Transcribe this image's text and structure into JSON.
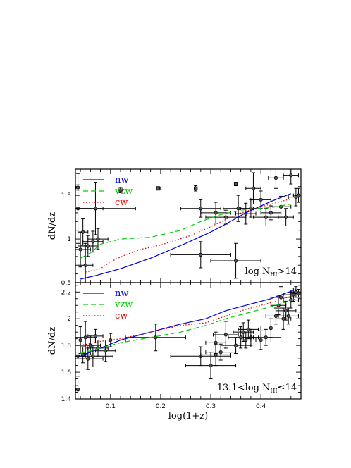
{
  "chart_data": [
    {
      "type": "line",
      "panel": "top",
      "ylabel": "dN/dz",
      "xlabel": "",
      "xlim": [
        0.03,
        0.48
      ],
      "ylim": [
        0.5,
        1.8
      ],
      "yticks": [
        "0.5",
        "1",
        "1.5"
      ],
      "yticks_values": [
        0.5,
        1.0,
        1.5
      ],
      "annotation": {
        "main": "log N",
        "sub": "HI",
        "cond": ">14"
      },
      "legend_position": "top-left",
      "series": [
        {
          "name": "nw",
          "color": "#0000dd",
          "style": "solid",
          "x": [
            0.04,
            0.07,
            0.12,
            0.18,
            0.25,
            0.3,
            0.33,
            0.37,
            0.42,
            0.46
          ],
          "y": [
            0.54,
            0.58,
            0.66,
            0.78,
            0.95,
            1.08,
            1.17,
            1.3,
            1.43,
            1.52
          ]
        },
        {
          "name": "vzw",
          "color": "#00cc00",
          "style": "dashed",
          "x": [
            0.04,
            0.06,
            0.08,
            0.12,
            0.18,
            0.24,
            0.28,
            0.32,
            0.37,
            0.42,
            0.46
          ],
          "y": [
            0.78,
            0.84,
            0.94,
            1.0,
            1.02,
            1.1,
            1.2,
            1.28,
            1.34,
            1.36,
            1.4
          ]
        },
        {
          "name": "cw",
          "color": "#dd0000",
          "style": "dotted",
          "x": [
            0.05,
            0.08,
            0.1,
            0.13,
            0.16,
            0.2,
            0.26,
            0.3,
            0.35,
            0.4,
            0.46
          ],
          "y": [
            0.62,
            0.66,
            0.74,
            0.82,
            0.88,
            0.93,
            1.04,
            1.14,
            1.28,
            1.37,
            1.46
          ]
        }
      ],
      "points": [
        {
          "x": 0.035,
          "y": 1.59,
          "ex": 0.004,
          "ey": 0.03
        },
        {
          "x": 0.12,
          "y": 1.56,
          "ex": 0.004,
          "ey": 0.03
        },
        {
          "x": 0.195,
          "y": 1.58,
          "ex": 0.004,
          "ey": 0.02
        },
        {
          "x": 0.27,
          "y": 1.58,
          "ex": 0.003,
          "ey": 0.03
        },
        {
          "x": 0.35,
          "y": 1.63,
          "ex": 0.003,
          "ey": 0.02
        },
        {
          "x": 0.035,
          "y": 1.35,
          "ex": 0.05,
          "ey": 0.4
        },
        {
          "x": 0.04,
          "y": 0.88,
          "ex": 0.02,
          "ey": 0.2
        },
        {
          "x": 0.045,
          "y": 1.08,
          "ex": 0.01,
          "ey": 0.15
        },
        {
          "x": 0.05,
          "y": 0.7,
          "ex": 0.015,
          "ey": 0.25
        },
        {
          "x": 0.055,
          "y": 0.92,
          "ex": 0.02,
          "ey": 0.12
        },
        {
          "x": 0.065,
          "y": 0.97,
          "ex": 0.02,
          "ey": 0.12
        },
        {
          "x": 0.07,
          "y": 1.35,
          "ex": 0.08,
          "ey": 0.3
        },
        {
          "x": 0.075,
          "y": 1.0,
          "ex": 0.02,
          "ey": 0.12
        },
        {
          "x": 0.28,
          "y": 1.35,
          "ex": 0.04,
          "ey": 0.1
        },
        {
          "x": 0.28,
          "y": 0.82,
          "ex": 0.06,
          "ey": 0.15
        },
        {
          "x": 0.31,
          "y": 1.3,
          "ex": 0.03,
          "ey": 0.12
        },
        {
          "x": 0.33,
          "y": 1.25,
          "ex": 0.04,
          "ey": 0.08
        },
        {
          "x": 0.35,
          "y": 0.75,
          "ex": 0.05,
          "ey": 0.2
        },
        {
          "x": 0.355,
          "y": 1.35,
          "ex": 0.03,
          "ey": 0.15
        },
        {
          "x": 0.37,
          "y": 1.29,
          "ex": 0.02,
          "ey": 0.12
        },
        {
          "x": 0.38,
          "y": 1.35,
          "ex": 0.02,
          "ey": 0.1
        },
        {
          "x": 0.385,
          "y": 1.58,
          "ex": 0.015,
          "ey": 0.18
        },
        {
          "x": 0.4,
          "y": 1.45,
          "ex": 0.02,
          "ey": 0.1
        },
        {
          "x": 0.41,
          "y": 1.25,
          "ex": 0.025,
          "ey": 0.1
        },
        {
          "x": 0.42,
          "y": 1.3,
          "ex": 0.02,
          "ey": 0.08
        },
        {
          "x": 0.43,
          "y": 1.7,
          "ex": 0.015,
          "ey": 0.12
        },
        {
          "x": 0.44,
          "y": 1.37,
          "ex": 0.02,
          "ey": 0.12
        },
        {
          "x": 0.45,
          "y": 1.25,
          "ex": 0.015,
          "ey": 0.1
        },
        {
          "x": 0.46,
          "y": 1.73,
          "ex": 0.015,
          "ey": 0.1
        },
        {
          "x": 0.47,
          "y": 1.48,
          "ex": 0.015,
          "ey": 0.1
        },
        {
          "x": 0.475,
          "y": 1.5,
          "ex": 0.01,
          "ey": 0.08
        }
      ]
    },
    {
      "type": "line",
      "panel": "bottom",
      "ylabel": "dN/dz",
      "xlabel": "log(1+z)",
      "xlim": [
        0.03,
        0.48
      ],
      "ylim": [
        1.4,
        2.27
      ],
      "xticks": [
        "0.1",
        "0.2",
        "0.3",
        "0.4"
      ],
      "xticks_values": [
        0.1,
        0.2,
        0.3,
        0.4
      ],
      "yticks": [
        "1.4",
        "1.6",
        "1.8",
        "2",
        "2.2"
      ],
      "yticks_values": [
        1.4,
        1.6,
        1.8,
        2.0,
        2.2
      ],
      "annotation": {
        "main": "13.1<log N",
        "sub": "HI",
        "cond": "≤14"
      },
      "legend_position": "top-left",
      "series": [
        {
          "name": "nw",
          "color": "#0000dd",
          "style": "solid",
          "x": [
            0.04,
            0.08,
            0.12,
            0.18,
            0.24,
            0.29,
            0.33,
            0.37,
            0.42,
            0.47
          ],
          "y": [
            1.72,
            1.78,
            1.84,
            1.9,
            1.96,
            2.0,
            2.06,
            2.1,
            2.15,
            2.22
          ]
        },
        {
          "name": "vzw",
          "color": "#00cc00",
          "style": "dashed",
          "x": [
            0.04,
            0.08,
            0.12,
            0.18,
            0.24,
            0.29,
            0.33,
            0.38,
            0.43,
            0.47
          ],
          "y": [
            1.74,
            1.78,
            1.82,
            1.86,
            1.9,
            1.95,
            2.0,
            2.05,
            2.1,
            2.15
          ]
        },
        {
          "name": "cw",
          "color": "#dd0000",
          "style": "dotted",
          "x": [
            0.04,
            0.08,
            0.12,
            0.18,
            0.24,
            0.29,
            0.33,
            0.37,
            0.42,
            0.47
          ],
          "y": [
            1.8,
            1.83,
            1.85,
            1.9,
            1.95,
            1.97,
            2.02,
            2.07,
            2.12,
            2.18
          ]
        }
      ],
      "points": [
        {
          "x": 0.035,
          "y": 1.47,
          "ex": 0.004,
          "ey": 0.1
        },
        {
          "x": 0.035,
          "y": 1.72,
          "ex": 0.015,
          "ey": 0.08
        },
        {
          "x": 0.04,
          "y": 1.84,
          "ex": 0.03,
          "ey": 0.1
        },
        {
          "x": 0.045,
          "y": 1.73,
          "ex": 0.02,
          "ey": 0.06
        },
        {
          "x": 0.05,
          "y": 1.86,
          "ex": 0.02,
          "ey": 0.12
        },
        {
          "x": 0.055,
          "y": 1.7,
          "ex": 0.03,
          "ey": 0.08
        },
        {
          "x": 0.06,
          "y": 1.8,
          "ex": 0.02,
          "ey": 0.07
        },
        {
          "x": 0.065,
          "y": 1.72,
          "ex": 0.04,
          "ey": 0.08
        },
        {
          "x": 0.07,
          "y": 1.87,
          "ex": 0.015,
          "ey": 0.05
        },
        {
          "x": 0.075,
          "y": 1.78,
          "ex": 0.02,
          "ey": 0.06
        },
        {
          "x": 0.09,
          "y": 1.76,
          "ex": 0.02,
          "ey": 0.08
        },
        {
          "x": 0.1,
          "y": 1.84,
          "ex": 0.03,
          "ey": 0.05
        },
        {
          "x": 0.19,
          "y": 1.86,
          "ex": 0.06,
          "ey": 0.1
        },
        {
          "x": 0.28,
          "y": 1.72,
          "ex": 0.06,
          "ey": 0.07
        },
        {
          "x": 0.3,
          "y": 1.65,
          "ex": 0.05,
          "ey": 0.1
        },
        {
          "x": 0.31,
          "y": 1.82,
          "ex": 0.02,
          "ey": 0.08
        },
        {
          "x": 0.31,
          "y": 1.73,
          "ex": 0.03,
          "ey": 0.08
        },
        {
          "x": 0.32,
          "y": 1.75,
          "ex": 0.03,
          "ey": 0.06
        },
        {
          "x": 0.33,
          "y": 1.88,
          "ex": 0.025,
          "ey": 0.1
        },
        {
          "x": 0.35,
          "y": 1.8,
          "ex": 0.03,
          "ey": 0.06
        },
        {
          "x": 0.36,
          "y": 1.86,
          "ex": 0.025,
          "ey": 0.08
        },
        {
          "x": 0.365,
          "y": 1.9,
          "ex": 0.02,
          "ey": 0.07
        },
        {
          "x": 0.37,
          "y": 1.84,
          "ex": 0.02,
          "ey": 0.06
        },
        {
          "x": 0.375,
          "y": 1.92,
          "ex": 0.02,
          "ey": 0.07
        },
        {
          "x": 0.38,
          "y": 1.86,
          "ex": 0.015,
          "ey": 0.06
        },
        {
          "x": 0.4,
          "y": 1.84,
          "ex": 0.02,
          "ey": 0.07
        },
        {
          "x": 0.41,
          "y": 1.86,
          "ex": 0.03,
          "ey": 0.06
        },
        {
          "x": 0.42,
          "y": 1.93,
          "ex": 0.02,
          "ey": 0.07
        },
        {
          "x": 0.43,
          "y": 2.02,
          "ex": 0.02,
          "ey": 0.06
        },
        {
          "x": 0.435,
          "y": 2.1,
          "ex": 0.015,
          "ey": 0.07
        },
        {
          "x": 0.44,
          "y": 2.16,
          "ex": 0.02,
          "ey": 0.08
        },
        {
          "x": 0.445,
          "y": 2.0,
          "ex": 0.015,
          "ey": 0.08
        },
        {
          "x": 0.45,
          "y": 2.06,
          "ex": 0.02,
          "ey": 0.07
        },
        {
          "x": 0.455,
          "y": 2.02,
          "ex": 0.02,
          "ey": 0.06
        },
        {
          "x": 0.46,
          "y": 2.14,
          "ex": 0.015,
          "ey": 0.06
        },
        {
          "x": 0.465,
          "y": 2.18,
          "ex": 0.02,
          "ey": 0.05
        },
        {
          "x": 0.47,
          "y": 2.2,
          "ex": 0.01,
          "ey": 0.04
        },
        {
          "x": 0.475,
          "y": 2.19,
          "ex": 0.015,
          "ey": 0.03
        }
      ]
    }
  ]
}
